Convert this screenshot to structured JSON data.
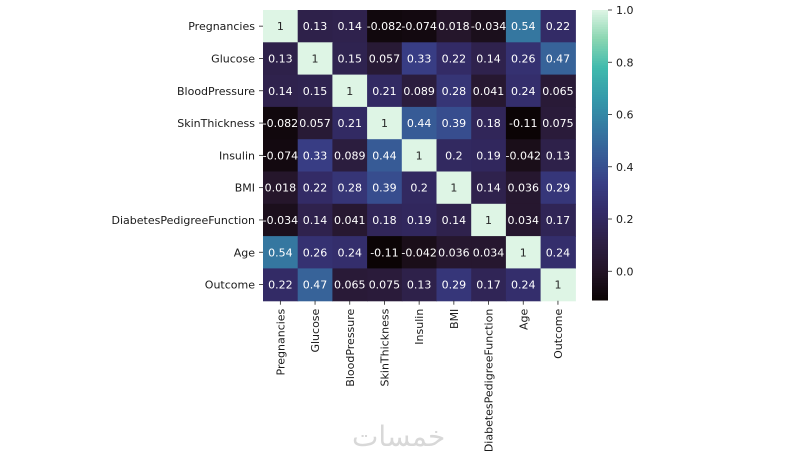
{
  "chart_data": {
    "type": "heatmap",
    "title": "",
    "xlabel": "",
    "ylabel": "",
    "labels": [
      "Pregnancies",
      "Glucose",
      "BloodPressure",
      "SkinThickness",
      "Insulin",
      "BMI",
      "DiabetesPedigreeFunction",
      "Age",
      "Outcome"
    ],
    "cell_labels": [
      [
        "1",
        "0.13",
        "0.14",
        "-0.082",
        "-0.074",
        "0.018",
        "-0.034",
        "0.54",
        "0.22"
      ],
      [
        "0.13",
        "1",
        "0.15",
        "0.057",
        "0.33",
        "0.22",
        "0.14",
        "0.26",
        "0.47"
      ],
      [
        "0.14",
        "0.15",
        "1",
        "0.21",
        "0.089",
        "0.28",
        "0.041",
        "0.24",
        "0.065"
      ],
      [
        "-0.082",
        "0.057",
        "0.21",
        "1",
        "0.44",
        "0.39",
        "0.18",
        "-0.11",
        "0.075"
      ],
      [
        "-0.074",
        "0.33",
        "0.089",
        "0.44",
        "1",
        "0.2",
        "0.19",
        "-0.042",
        "0.13"
      ],
      [
        "0.018",
        "0.22",
        "0.28",
        "0.39",
        "0.2",
        "1",
        "0.14",
        "0.036",
        "0.29"
      ],
      [
        "-0.034",
        "0.14",
        "0.041",
        "0.18",
        "0.19",
        "0.14",
        "1",
        "0.034",
        "0.17"
      ],
      [
        "0.54",
        "0.26",
        "0.24",
        "-0.11",
        "-0.042",
        "0.036",
        "0.034",
        "1",
        "0.24"
      ],
      [
        "0.22",
        "0.47",
        "0.065",
        "0.075",
        "0.13",
        "0.29",
        "0.17",
        "0.24",
        "1"
      ]
    ],
    "colorbar": {
      "range": [
        -0.11,
        1.0
      ],
      "ticks": [
        0.0,
        0.2,
        0.4,
        0.6,
        0.8,
        1.0
      ],
      "tick_labels": [
        "0.0",
        "0.2",
        "0.4",
        "0.6",
        "0.8",
        "1.0"
      ],
      "colormap": "mako"
    },
    "annotation_text_colors": {
      "on_dark": "#ffffff",
      "on_light": "#262626"
    }
  },
  "watermark": {
    "text": "خمسات"
  }
}
